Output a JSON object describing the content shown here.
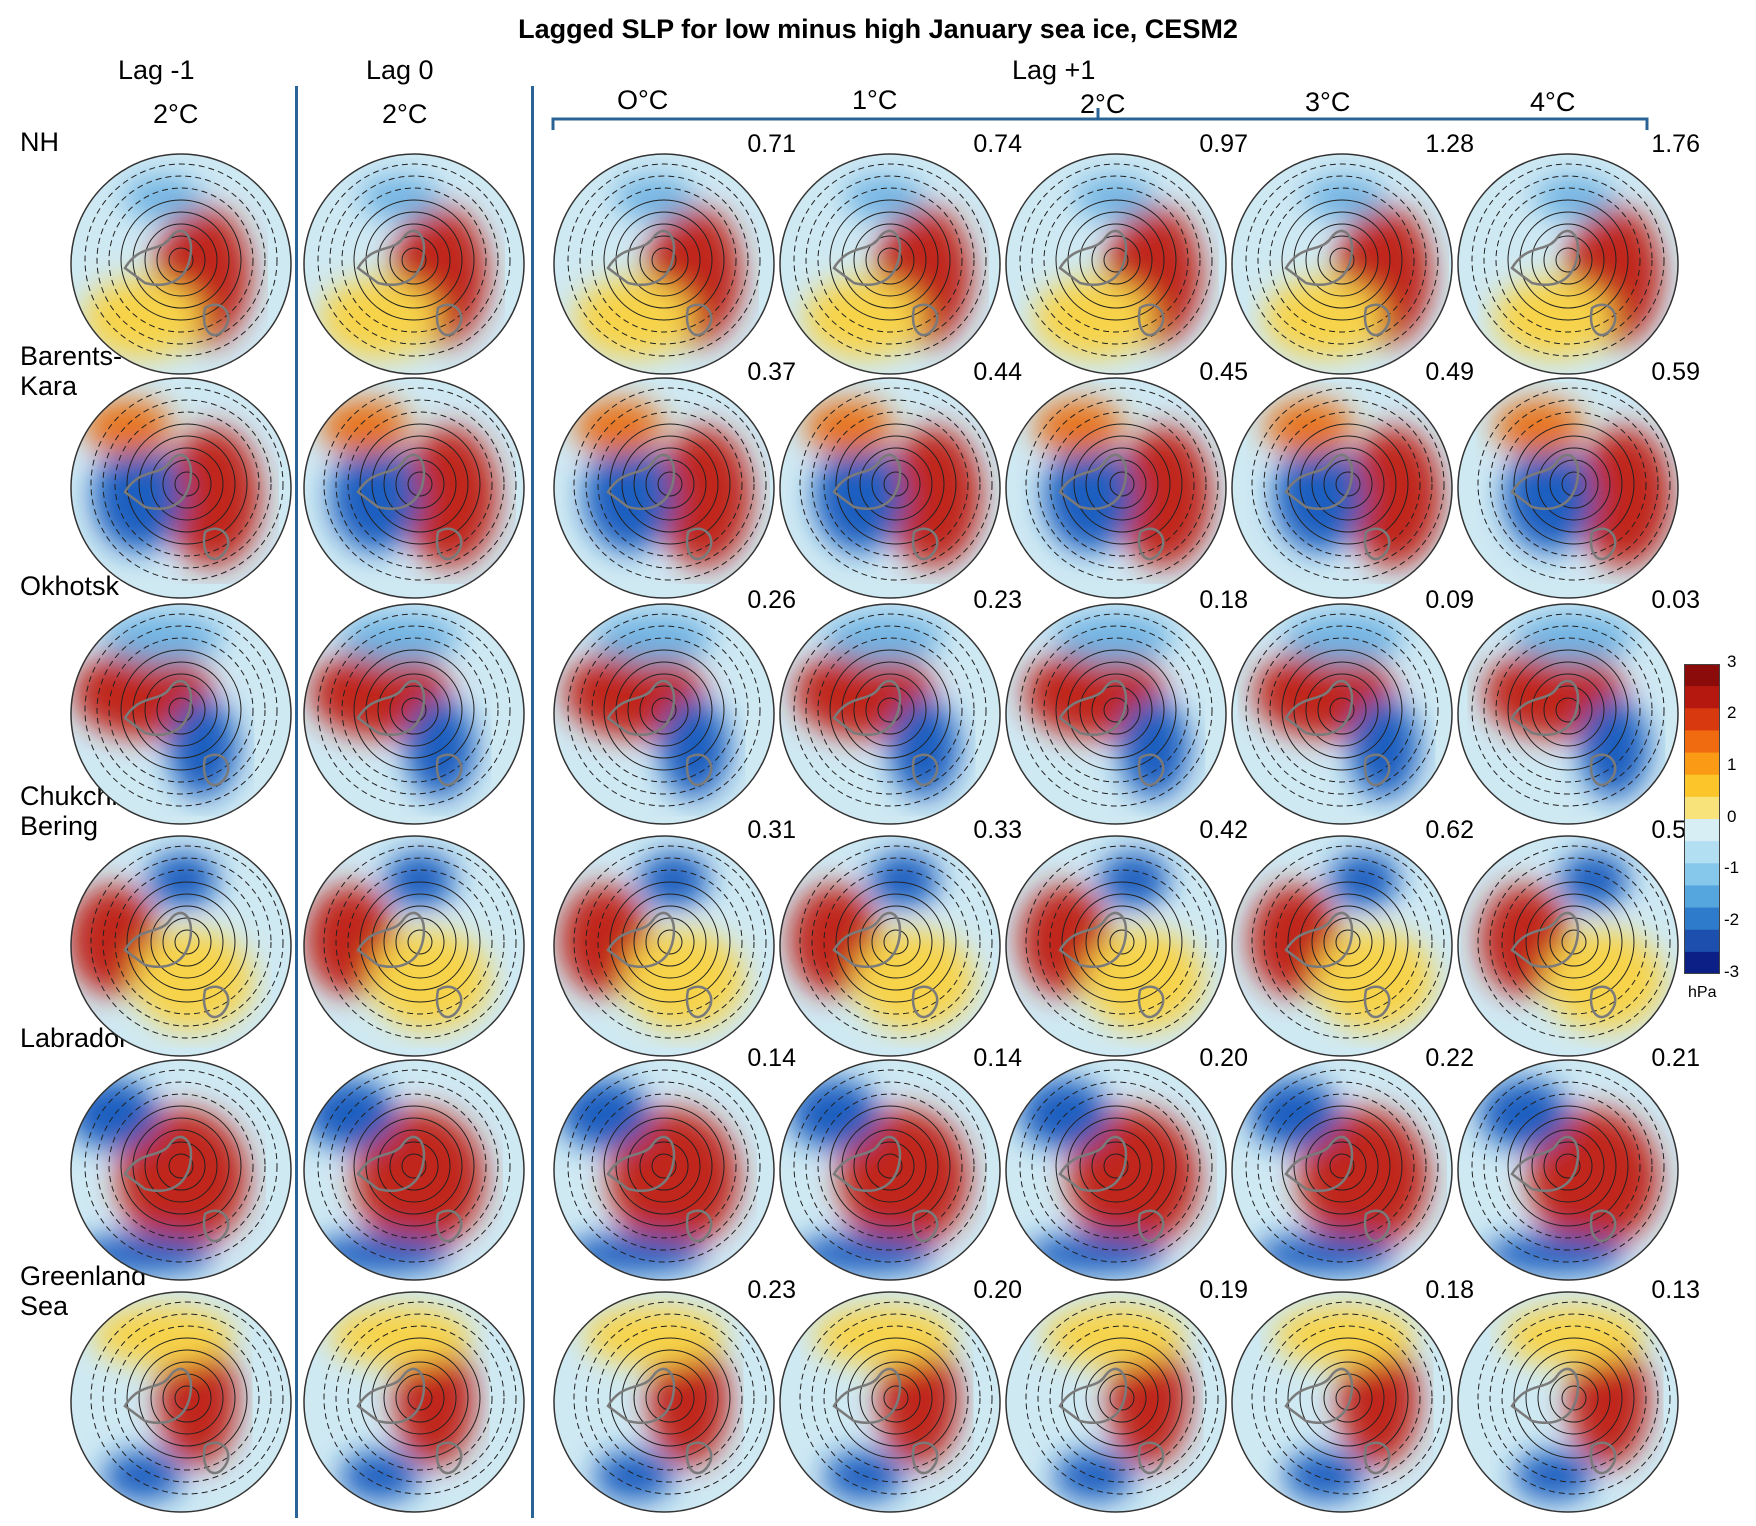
{
  "title": "Lagged SLP for low minus high January sea ice, CESM2",
  "lags": {
    "lag_minus1": "Lag -1",
    "lag_0": "Lag 0",
    "lag_plus1": "Lag +1"
  },
  "column_temps": {
    "lag_minus1": "2°C",
    "lag_0": "2°C"
  },
  "warming_levels": [
    "O°C",
    "1°C",
    "2°C",
    "3°C",
    "4°C"
  ],
  "rows": [
    {
      "label_lines": [
        "NH"
      ],
      "values": [
        "0.71",
        "0.74",
        "0.97",
        "1.28",
        "1.76"
      ]
    },
    {
      "label_lines": [
        "Barents-",
        "Kara"
      ],
      "values": [
        "0.37",
        "0.44",
        "0.45",
        "0.49",
        "0.59"
      ]
    },
    {
      "label_lines": [
        "Okhotsk"
      ],
      "values": [
        "0.26",
        "0.23",
        "0.18",
        "0.09",
        "0.03"
      ]
    },
    {
      "label_lines": [
        "Chukchi/",
        "Bering"
      ],
      "values": [
        "0.31",
        "0.33",
        "0.42",
        "0.62",
        "0.57"
      ]
    },
    {
      "label_lines": [
        "Labrador"
      ],
      "values": [
        "0.14",
        "0.14",
        "0.20",
        "0.22",
        "0.21"
      ]
    },
    {
      "label_lines": [
        "Greenland",
        "Sea"
      ],
      "values": [
        "0.23",
        "0.20",
        "0.19",
        "0.18",
        "0.13"
      ]
    }
  ],
  "colorbar": {
    "ticks": [
      "3",
      "2",
      "1",
      "0",
      "-1",
      "-2",
      "-3"
    ],
    "unit": "hPa",
    "colors": [
      "#8b0a0a",
      "#b5180e",
      "#d9390e",
      "#f06a10",
      "#fb9a14",
      "#fcc62a",
      "#f8e27a",
      "#d8eef5",
      "#b3dff2",
      "#86c8ec",
      "#55a6df",
      "#2f7bcb",
      "#1c4fae",
      "#0c1f86"
    ]
  },
  "colors": {
    "divider": "#2a6496",
    "positive": "#c0281a",
    "negative": "#1f5fc0",
    "neutral": "#cfe9f3"
  }
}
